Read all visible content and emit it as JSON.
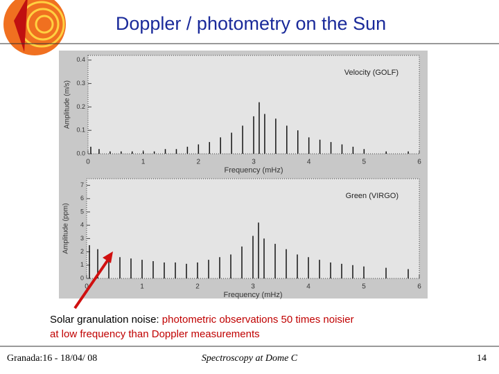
{
  "title": "Doppler / photometry on the Sun",
  "chart_data": [
    {
      "type": "stem",
      "xlabel": "Frequency (mHz)",
      "ylabel": "Amplitude (m/s)",
      "xlim": [
        0,
        6
      ],
      "xticks": [
        0,
        1,
        2,
        3,
        4,
        5,
        6
      ],
      "ylim": [
        0,
        0.42
      ],
      "yticks": [
        {
          "value": 0,
          "label": "0.0"
        },
        0.1,
        0.2,
        0.3,
        0.4
      ],
      "x": [
        0.05,
        0.2,
        0.4,
        0.6,
        0.8,
        1.0,
        1.2,
        1.4,
        1.6,
        1.8,
        2.0,
        2.2,
        2.4,
        2.6,
        2.8,
        3.0,
        3.1,
        3.2,
        3.4,
        3.6,
        3.8,
        4.0,
        4.2,
        4.4,
        4.6,
        4.8,
        5.0,
        5.4,
        5.8
      ],
      "series": [
        {
          "name": "Velocity (GOLF)",
          "color": "#111111",
          "values": [
            0.03,
            0.02,
            0.01,
            0.01,
            0.01,
            0.01,
            0.01,
            0.02,
            0.02,
            0.03,
            0.04,
            0.05,
            0.07,
            0.09,
            0.12,
            0.16,
            0.22,
            0.17,
            0.15,
            0.12,
            0.1,
            0.07,
            0.06,
            0.05,
            0.04,
            0.03,
            0.02,
            0.01,
            0.01
          ]
        }
      ]
    },
    {
      "type": "stem",
      "xlabel": "Frequency (mHz)",
      "ylabel": "Amplitude (ppm)",
      "xlim": [
        0,
        6
      ],
      "xticks": [
        0,
        1,
        2,
        3,
        4,
        5,
        6
      ],
      "ylim": [
        0,
        7.5
      ],
      "yticks": [
        0,
        1,
        2,
        3,
        4,
        5,
        6,
        7
      ],
      "x": [
        0.05,
        0.2,
        0.4,
        0.6,
        0.8,
        1.0,
        1.2,
        1.4,
        1.6,
        1.8,
        2.0,
        2.2,
        2.4,
        2.6,
        2.8,
        3.0,
        3.1,
        3.2,
        3.4,
        3.6,
        3.8,
        4.0,
        4.2,
        4.4,
        4.6,
        4.8,
        5.0,
        5.4,
        5.8
      ],
      "series": [
        {
          "name": "Green (VIRGO)",
          "color": "#111111",
          "values": [
            2.5,
            2.2,
            1.8,
            1.6,
            1.5,
            1.4,
            1.3,
            1.2,
            1.2,
            1.1,
            1.2,
            1.4,
            1.6,
            1.8,
            2.4,
            3.2,
            4.2,
            3.0,
            2.6,
            2.2,
            1.8,
            1.6,
            1.4,
            1.2,
            1.1,
            1.0,
            0.9,
            0.8,
            0.7
          ]
        }
      ]
    }
  ],
  "annotation": {
    "prefix": "Solar granulation noise:",
    "highlight": "photometric observations  50 times  noisier",
    "line2": "at low frequency than Doppler measurements"
  },
  "footer": {
    "left": "Granada:16 - 18/04/ 08",
    "center": "Spectroscopy at Dome C",
    "right": "14"
  }
}
